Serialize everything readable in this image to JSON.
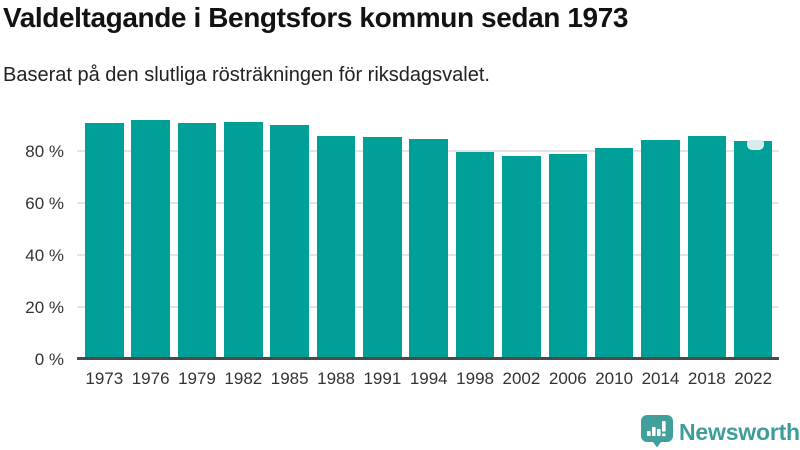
{
  "title": "Valdeltagande i Bengtsfors kommun sedan 1973",
  "subtitle": "Baserat på den slutliga rösträkningen för riksdagsvalet.",
  "footer": {
    "brand_name": "Newsworthy"
  },
  "colors": {
    "bar": "#00a099",
    "gridline": "#e4e4e4",
    "axis_line": "#4a4a4a",
    "title_text": "#121212",
    "tick_text": "#333333",
    "brand": "#3c9d99",
    "logo_fill": "#41a09c",
    "highlight_marker": "#d6edeb",
    "background": "#ffffff"
  },
  "chart_data": {
    "type": "bar",
    "title": "Valdeltagande i Bengtsfors kommun sedan 1973",
    "subtitle": "Baserat på den slutliga rösträkningen för riksdagsvalet.",
    "categories": [
      "1973",
      "1976",
      "1979",
      "1982",
      "1985",
      "1988",
      "1991",
      "1994",
      "1998",
      "2002",
      "2006",
      "2010",
      "2014",
      "2018",
      "2022"
    ],
    "values": [
      90.4,
      91.8,
      90.5,
      91.0,
      89.7,
      85.4,
      85.3,
      84.3,
      79.3,
      77.7,
      78.8,
      80.8,
      84.0,
      85.4,
      83.6
    ],
    "unit": "%",
    "xlabel": "",
    "ylabel": "",
    "yticks": [
      {
        "label": "0 %",
        "value": 0
      },
      {
        "label": "20 %",
        "value": 20
      },
      {
        "label": "40 %",
        "value": 40
      },
      {
        "label": "60 %",
        "value": 60
      },
      {
        "label": "80 %",
        "value": 80
      }
    ],
    "ylim": [
      0,
      95
    ],
    "grid": true,
    "legend_position": "none",
    "highlight_marker_on_last_bar": true
  }
}
